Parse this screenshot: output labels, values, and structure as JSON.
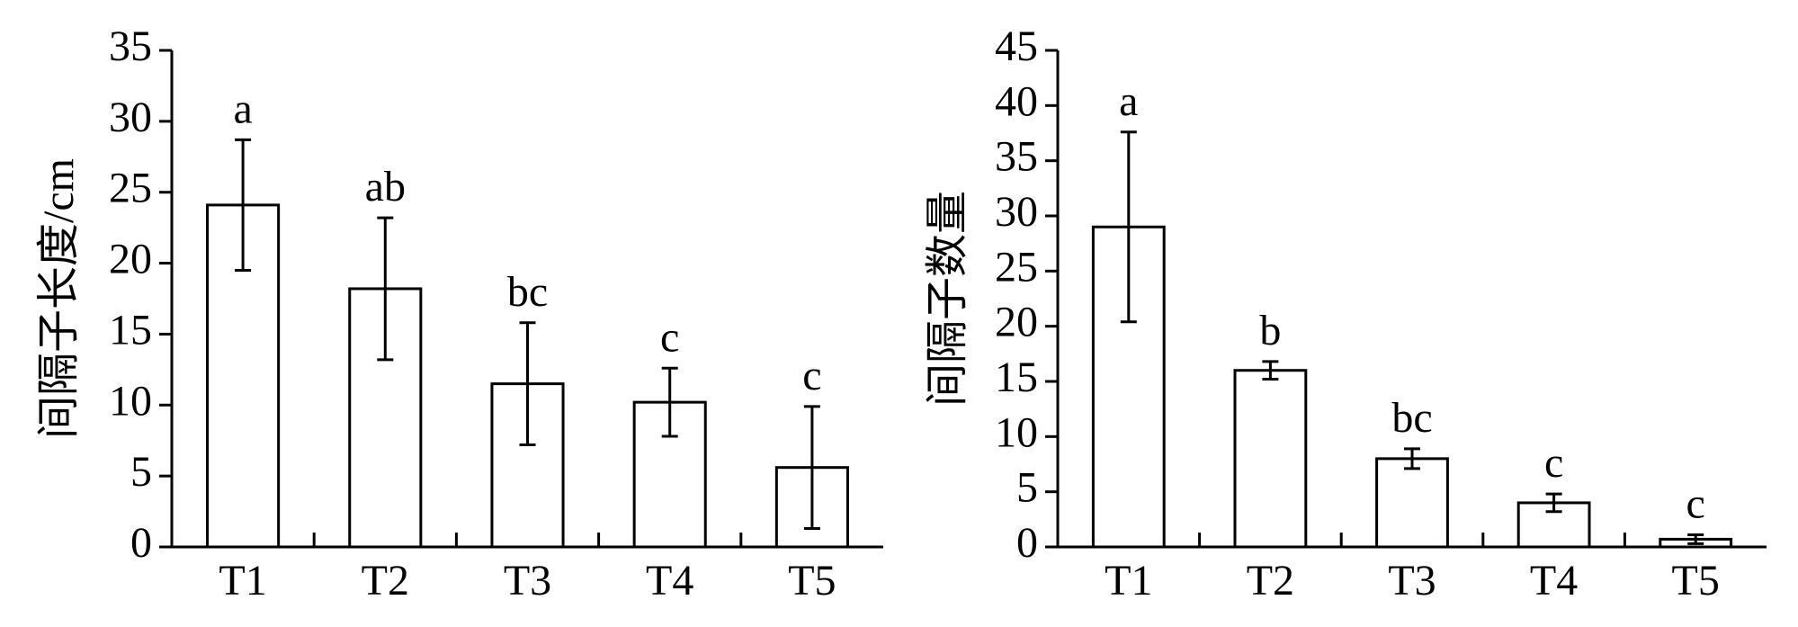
{
  "chart_data": [
    {
      "type": "bar",
      "ylabel": "间隔子长度/cm",
      "categories": [
        "T1",
        "T2",
        "T3",
        "T4",
        "T5"
      ],
      "values": [
        24.1,
        18.2,
        11.5,
        10.2,
        5.6
      ],
      "errors": [
        4.6,
        5.0,
        4.3,
        2.4,
        4.3
      ],
      "annotations": [
        "a",
        "ab",
        "bc",
        "c",
        "c"
      ],
      "color": "#ffffff",
      "ylim": [
        0,
        35
      ],
      "yticks": [
        0,
        5,
        10,
        15,
        20,
        25,
        30,
        35
      ]
    },
    {
      "type": "bar",
      "ylabel": "间隔子数量",
      "categories": [
        "T1",
        "T2",
        "T3",
        "T4",
        "T5"
      ],
      "values": [
        29.0,
        16.0,
        8.0,
        4.0,
        0.7
      ],
      "errors": [
        8.6,
        0.8,
        0.9,
        0.8,
        0.4
      ],
      "annotations": [
        "a",
        "b",
        "bc",
        "c",
        "c"
      ],
      "color": "#ffffff",
      "ylim": [
        0,
        45
      ],
      "yticks": [
        0,
        5,
        10,
        15,
        20,
        25,
        30,
        35,
        40,
        45
      ]
    }
  ]
}
